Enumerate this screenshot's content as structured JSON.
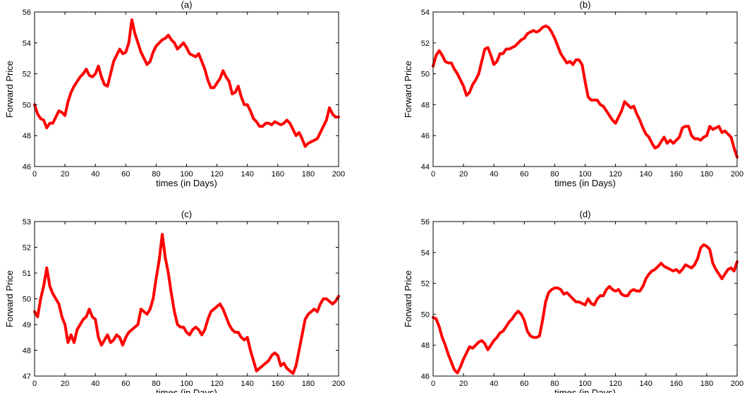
{
  "line_color": "#ff0000",
  "chart_data": [
    {
      "type": "line",
      "title": "(a)",
      "xlabel": "times (in Days)",
      "ylabel": "Forward Price",
      "xlim": [
        0,
        200
      ],
      "ylim": [
        46,
        56
      ],
      "xticks": [
        0,
        20,
        40,
        60,
        80,
        100,
        120,
        140,
        160,
        180,
        200
      ],
      "yticks": [
        46,
        48,
        50,
        52,
        54,
        56
      ],
      "grid": false,
      "series": [
        {
          "x": [
            0,
            2,
            4,
            6,
            8,
            10,
            12,
            14,
            16,
            18,
            20,
            22,
            24,
            26,
            28,
            30,
            32,
            34,
            36,
            38,
            40,
            42,
            44,
            46,
            48,
            50,
            52,
            54,
            56,
            58,
            60,
            62,
            64,
            66,
            68,
            70,
            72,
            74,
            76,
            78,
            80,
            82,
            84,
            86,
            88,
            90,
            92,
            94,
            96,
            98,
            100,
            102,
            104,
            106,
            108,
            110,
            112,
            114,
            116,
            118,
            120,
            122,
            124,
            126,
            128,
            130,
            132,
            134,
            136,
            138,
            140,
            142,
            144,
            146,
            148,
            150,
            152,
            154,
            156,
            158,
            160,
            162,
            164,
            166,
            168,
            170,
            172,
            174,
            176,
            178,
            180,
            182,
            184,
            186,
            188,
            190,
            192,
            194,
            196,
            198,
            200
          ],
          "values": [
            50.0,
            49.4,
            49.1,
            49.0,
            48.5,
            48.8,
            48.8,
            49.2,
            49.6,
            49.5,
            49.3,
            50.2,
            50.8,
            51.2,
            51.5,
            51.8,
            52.0,
            52.3,
            51.9,
            51.8,
            52.0,
            52.5,
            51.8,
            51.3,
            51.2,
            52.0,
            52.8,
            53.2,
            53.6,
            53.3,
            53.4,
            54.0,
            55.5,
            54.6,
            54.0,
            53.4,
            53.0,
            52.6,
            52.8,
            53.4,
            53.8,
            54.0,
            54.2,
            54.3,
            54.5,
            54.2,
            54.0,
            53.6,
            53.8,
            54.0,
            53.7,
            53.3,
            53.2,
            53.1,
            53.3,
            52.8,
            52.3,
            51.6,
            51.1,
            51.1,
            51.4,
            51.7,
            52.2,
            51.8,
            51.5,
            50.7,
            50.8,
            51.2,
            50.5,
            50.0,
            50.0,
            49.6,
            49.1,
            48.9,
            48.6,
            48.6,
            48.8,
            48.8,
            48.7,
            48.9,
            48.8,
            48.7,
            48.8,
            49.0,
            48.8,
            48.4,
            48.0,
            48.2,
            47.8,
            47.3,
            47.5,
            47.6,
            47.7,
            47.8,
            48.2,
            48.6,
            49.0,
            49.8,
            49.4,
            49.2,
            49.2
          ]
        }
      ]
    },
    {
      "type": "line",
      "title": "(b)",
      "xlabel": "times (in Days)",
      "ylabel": "Forward Price",
      "xlim": [
        0,
        200
      ],
      "ylim": [
        44,
        54
      ],
      "xticks": [
        0,
        20,
        40,
        60,
        80,
        100,
        120,
        140,
        160,
        180,
        200
      ],
      "yticks": [
        44,
        46,
        48,
        50,
        52,
        54
      ],
      "grid": false,
      "series": [
        {
          "x": [
            0,
            2,
            4,
            6,
            8,
            10,
            12,
            14,
            16,
            18,
            20,
            22,
            24,
            26,
            28,
            30,
            32,
            34,
            36,
            38,
            40,
            42,
            44,
            46,
            48,
            50,
            52,
            54,
            56,
            58,
            60,
            62,
            64,
            66,
            68,
            70,
            72,
            74,
            76,
            78,
            80,
            82,
            84,
            86,
            88,
            90,
            92,
            94,
            96,
            98,
            100,
            102,
            104,
            106,
            108,
            110,
            112,
            114,
            116,
            118,
            120,
            122,
            124,
            126,
            128,
            130,
            132,
            134,
            136,
            138,
            140,
            142,
            144,
            146,
            148,
            150,
            152,
            154,
            156,
            158,
            160,
            162,
            164,
            166,
            168,
            170,
            172,
            174,
            176,
            178,
            180,
            182,
            184,
            186,
            188,
            190,
            192,
            194,
            196,
            198,
            200
          ],
          "values": [
            50.5,
            51.2,
            51.5,
            51.2,
            50.8,
            50.7,
            50.7,
            50.3,
            50.0,
            49.6,
            49.2,
            48.6,
            48.8,
            49.3,
            49.6,
            50.0,
            50.8,
            51.6,
            51.7,
            51.2,
            50.6,
            50.8,
            51.3,
            51.3,
            51.6,
            51.6,
            51.7,
            51.8,
            52.0,
            52.2,
            52.3,
            52.6,
            52.7,
            52.8,
            52.7,
            52.8,
            53.0,
            53.1,
            53.0,
            52.7,
            52.3,
            51.8,
            51.3,
            51.0,
            50.7,
            50.8,
            50.6,
            50.9,
            50.9,
            50.6,
            49.5,
            48.5,
            48.3,
            48.3,
            48.3,
            48.0,
            47.9,
            47.6,
            47.3,
            47.0,
            46.8,
            47.2,
            47.6,
            48.2,
            48.0,
            47.8,
            47.9,
            47.4,
            47.0,
            46.5,
            46.1,
            45.9,
            45.5,
            45.2,
            45.3,
            45.6,
            45.9,
            45.5,
            45.7,
            45.5,
            45.7,
            45.9,
            46.5,
            46.6,
            46.6,
            46.0,
            45.8,
            45.8,
            45.7,
            45.9,
            46.0,
            46.6,
            46.4,
            46.5,
            46.6,
            46.2,
            46.3,
            46.1,
            45.9,
            45.2,
            44.6
          ]
        }
      ]
    },
    {
      "type": "line",
      "title": "(c)",
      "xlabel": "times (in Days)",
      "ylabel": "Forward Price",
      "xlim": [
        0,
        200
      ],
      "ylim": [
        47,
        53
      ],
      "xticks": [
        0,
        20,
        40,
        60,
        80,
        100,
        120,
        140,
        160,
        180,
        200
      ],
      "yticks": [
        47,
        48,
        49,
        50,
        51,
        52,
        53
      ],
      "grid": false,
      "series": [
        {
          "x": [
            0,
            2,
            4,
            6,
            8,
            10,
            12,
            14,
            16,
            18,
            20,
            22,
            24,
            26,
            28,
            30,
            32,
            34,
            36,
            38,
            40,
            42,
            44,
            46,
            48,
            50,
            52,
            54,
            56,
            58,
            60,
            62,
            64,
            66,
            68,
            70,
            72,
            74,
            76,
            78,
            80,
            82,
            84,
            86,
            88,
            90,
            92,
            94,
            96,
            98,
            100,
            102,
            104,
            106,
            108,
            110,
            112,
            114,
            116,
            118,
            120,
            122,
            124,
            126,
            128,
            130,
            132,
            134,
            136,
            138,
            140,
            142,
            144,
            146,
            148,
            150,
            152,
            154,
            156,
            158,
            160,
            162,
            164,
            166,
            168,
            170,
            172,
            174,
            176,
            178,
            180,
            182,
            184,
            186,
            188,
            190,
            192,
            194,
            196,
            198,
            200
          ],
          "values": [
            49.5,
            49.3,
            50.0,
            50.5,
            51.2,
            50.5,
            50.2,
            50.0,
            49.8,
            49.3,
            49.0,
            48.3,
            48.6,
            48.3,
            48.8,
            49.0,
            49.2,
            49.3,
            49.6,
            49.3,
            49.2,
            48.5,
            48.2,
            48.4,
            48.6,
            48.3,
            48.4,
            48.6,
            48.5,
            48.2,
            48.5,
            48.7,
            48.8,
            48.9,
            49.0,
            49.6,
            49.5,
            49.4,
            49.6,
            50.0,
            50.8,
            51.5,
            52.5,
            51.6,
            51.0,
            50.2,
            49.5,
            49.0,
            48.9,
            48.9,
            48.7,
            48.6,
            48.8,
            48.9,
            48.8,
            48.6,
            48.8,
            49.2,
            49.5,
            49.6,
            49.7,
            49.8,
            49.6,
            49.3,
            49.0,
            48.8,
            48.7,
            48.7,
            48.5,
            48.4,
            48.5,
            48.0,
            47.6,
            47.2,
            47.3,
            47.4,
            47.5,
            47.6,
            47.8,
            47.9,
            47.8,
            47.4,
            47.5,
            47.3,
            47.2,
            47.1,
            47.4,
            48.0,
            48.6,
            49.2,
            49.4,
            49.5,
            49.6,
            49.5,
            49.8,
            50.0,
            50.0,
            49.9,
            49.8,
            49.9,
            50.1
          ]
        }
      ]
    },
    {
      "type": "line",
      "title": "(d)",
      "xlabel": "times (in Days)",
      "ylabel": "Forward Price",
      "xlim": [
        0,
        200
      ],
      "ylim": [
        46,
        56
      ],
      "xticks": [
        0,
        20,
        40,
        60,
        80,
        100,
        120,
        140,
        160,
        180,
        200
      ],
      "yticks": [
        46,
        48,
        50,
        52,
        54,
        56
      ],
      "grid": false,
      "series": [
        {
          "x": [
            0,
            2,
            4,
            6,
            8,
            10,
            12,
            14,
            16,
            18,
            20,
            22,
            24,
            26,
            28,
            30,
            32,
            34,
            36,
            38,
            40,
            42,
            44,
            46,
            48,
            50,
            52,
            54,
            56,
            58,
            60,
            62,
            64,
            66,
            68,
            70,
            72,
            74,
            76,
            78,
            80,
            82,
            84,
            86,
            88,
            90,
            92,
            94,
            96,
            98,
            100,
            102,
            104,
            106,
            108,
            110,
            112,
            114,
            116,
            118,
            120,
            122,
            124,
            126,
            128,
            130,
            132,
            134,
            136,
            138,
            140,
            142,
            144,
            146,
            148,
            150,
            152,
            154,
            156,
            158,
            160,
            162,
            164,
            166,
            168,
            170,
            172,
            174,
            176,
            178,
            180,
            182,
            184,
            186,
            188,
            190,
            192,
            194,
            196,
            198,
            200
          ],
          "values": [
            49.8,
            49.7,
            49.2,
            48.5,
            48.0,
            47.4,
            46.9,
            46.4,
            46.2,
            46.6,
            47.1,
            47.5,
            47.9,
            47.8,
            48.0,
            48.2,
            48.3,
            48.1,
            47.7,
            48.0,
            48.3,
            48.5,
            48.8,
            48.9,
            49.2,
            49.5,
            49.7,
            50.0,
            50.2,
            50.0,
            49.6,
            48.9,
            48.6,
            48.5,
            48.5,
            48.6,
            49.6,
            50.8,
            51.4,
            51.6,
            51.7,
            51.7,
            51.6,
            51.3,
            51.4,
            51.2,
            51.0,
            50.8,
            50.8,
            50.7,
            50.6,
            51.0,
            50.7,
            50.6,
            51.0,
            51.2,
            51.2,
            51.6,
            51.8,
            51.6,
            51.5,
            51.6,
            51.3,
            51.2,
            51.2,
            51.5,
            51.6,
            51.5,
            51.5,
            51.8,
            52.3,
            52.6,
            52.8,
            52.9,
            53.1,
            53.3,
            53.1,
            53.0,
            52.9,
            52.8,
            52.9,
            52.7,
            52.9,
            53.2,
            53.1,
            53.0,
            53.2,
            53.6,
            54.3,
            54.5,
            54.4,
            54.2,
            53.3,
            52.9,
            52.6,
            52.3,
            52.6,
            52.9,
            53.0,
            52.8,
            53.4
          ]
        }
      ]
    }
  ]
}
